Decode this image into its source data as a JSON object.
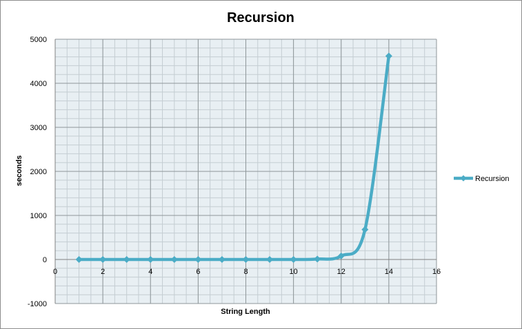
{
  "chart_data": {
    "type": "scatter",
    "title": "Recursion",
    "xlabel": "String Length",
    "ylabel": "seconds",
    "xlim": [
      0,
      16
    ],
    "ylim": [
      -1000,
      5000
    ],
    "x_ticks": [
      0,
      2,
      4,
      6,
      8,
      10,
      12,
      14,
      16
    ],
    "y_ticks": [
      -1000,
      0,
      1000,
      2000,
      3000,
      4000,
      5000
    ],
    "x_tick_labels": [
      "0",
      "2",
      "4",
      "6",
      "8",
      "10",
      "12",
      "14",
      "16"
    ],
    "y_tick_labels": [
      "-1000",
      "0",
      "1000",
      "2000",
      "3000",
      "4000",
      "5000"
    ],
    "grid": true,
    "minor_grid": true,
    "smooth": true,
    "legend_position": "right",
    "series": [
      {
        "name": "Recursion",
        "color": "#4bacc6",
        "marker": "diamond",
        "x": [
          1,
          2,
          3,
          4,
          5,
          6,
          7,
          8,
          9,
          10,
          11,
          12,
          13,
          14
        ],
        "y": [
          0,
          0,
          0,
          0,
          0,
          0,
          0,
          0,
          0,
          0,
          10,
          80,
          680,
          4620
        ]
      }
    ]
  }
}
